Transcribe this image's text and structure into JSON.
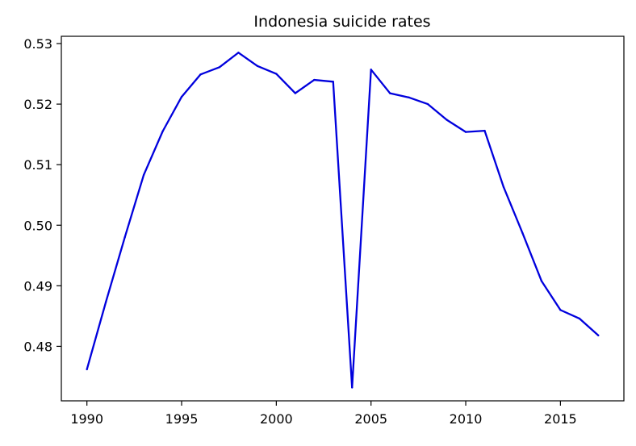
{
  "chart_data": {
    "type": "line",
    "title": "Indonesia suicide rates",
    "xlabel": "",
    "ylabel": "",
    "x": [
      1990,
      1991,
      1992,
      1993,
      1994,
      1995,
      1996,
      1997,
      1998,
      1999,
      2000,
      2001,
      2002,
      2003,
      2004,
      2005,
      2006,
      2007,
      2008,
      2009,
      2010,
      2011,
      2012,
      2013,
      2014,
      2015,
      2016,
      2017
    ],
    "series": [
      {
        "values": [
          0.4762,
          0.4873,
          0.498,
          0.5083,
          0.5155,
          0.5212,
          0.5249,
          0.5261,
          0.5285,
          0.5263,
          0.525,
          0.5218,
          0.524,
          0.5237,
          0.4732,
          0.5257,
          0.5218,
          0.5211,
          0.52,
          0.5174,
          0.5154,
          0.5156,
          0.5063,
          0.4987,
          0.4908,
          0.486,
          0.4846,
          0.4818
        ],
        "color": "#0000dd"
      }
    ],
    "xlim": [
      1988.65,
      1991.0
    ],
    "x_range": [
      1988.65,
      2018.35
    ],
    "ylim": [
      0.471,
      0.5312
    ],
    "x_ticks": [
      "1990",
      "1995",
      "2000",
      "2005",
      "2010",
      "2015"
    ],
    "y_ticks": [
      "0.48",
      "0.49",
      "0.50",
      "0.51",
      "0.52",
      "0.53"
    ],
    "grid": false,
    "legend": "none"
  }
}
